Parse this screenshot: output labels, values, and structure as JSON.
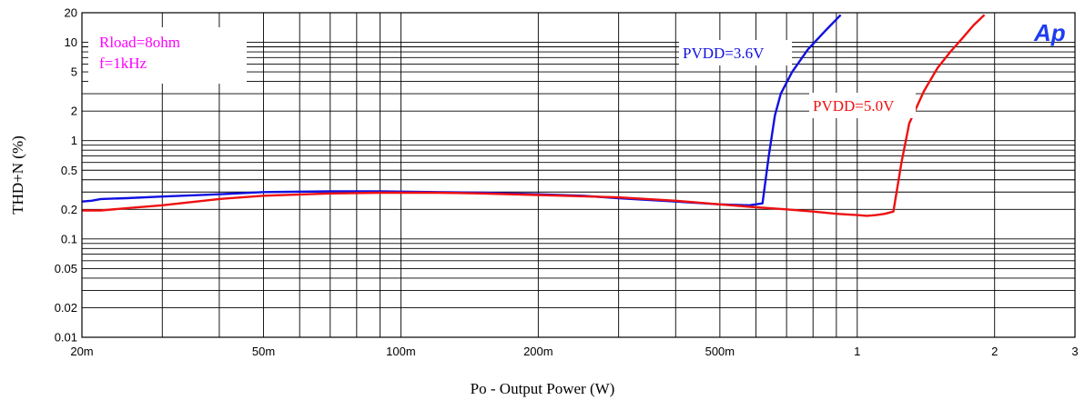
{
  "chart_data": {
    "type": "line",
    "title": "",
    "xlabel": "Po - Output Power (W)",
    "ylabel": "THD+N (%)",
    "x_scale": "log",
    "y_scale": "log",
    "xlim": [
      0.02,
      3
    ],
    "ylim": [
      0.01,
      20
    ],
    "grid": true,
    "x_ticks": [
      {
        "v": 0.02,
        "label": "20m"
      },
      {
        "v": 0.05,
        "label": "50m"
      },
      {
        "v": 0.1,
        "label": "100m"
      },
      {
        "v": 0.2,
        "label": "200m"
      },
      {
        "v": 0.5,
        "label": "500m"
      },
      {
        "v": 1,
        "label": "1"
      },
      {
        "v": 2,
        "label": "2"
      },
      {
        "v": 3,
        "label": "3"
      }
    ],
    "y_ticks": [
      {
        "v": 0.01,
        "label": "0.01"
      },
      {
        "v": 0.02,
        "label": "0.02"
      },
      {
        "v": 0.05,
        "label": "0.05"
      },
      {
        "v": 0.1,
        "label": "0.1"
      },
      {
        "v": 0.2,
        "label": "0.2"
      },
      {
        "v": 0.5,
        "label": "0.5"
      },
      {
        "v": 1,
        "label": "1"
      },
      {
        "v": 2,
        "label": "2"
      },
      {
        "v": 5,
        "label": "5"
      },
      {
        "v": 10,
        "label": "10"
      },
      {
        "v": 20,
        "label": "20"
      }
    ],
    "series": [
      {
        "name": "PVDD=3.6V",
        "color": "#1010e0",
        "x": [
          0.02,
          0.021,
          0.022,
          0.025,
          0.03,
          0.04,
          0.05,
          0.07,
          0.09,
          0.12,
          0.15,
          0.2,
          0.25,
          0.3,
          0.4,
          0.5,
          0.58,
          0.62,
          0.64,
          0.66,
          0.68,
          0.72,
          0.78,
          0.85,
          0.92
        ],
        "y": [
          0.24,
          0.245,
          0.255,
          0.26,
          0.27,
          0.285,
          0.3,
          0.305,
          0.305,
          0.3,
          0.295,
          0.285,
          0.275,
          0.26,
          0.24,
          0.225,
          0.22,
          0.23,
          0.7,
          1.8,
          3.0,
          5.0,
          8.5,
          13.0,
          19.0
        ]
      },
      {
        "name": "PVDD=5.0V",
        "color": "#ee1010",
        "x": [
          0.02,
          0.022,
          0.025,
          0.03,
          0.04,
          0.05,
          0.07,
          0.09,
          0.12,
          0.15,
          0.2,
          0.3,
          0.4,
          0.5,
          0.6,
          0.7,
          0.8,
          0.9,
          1.0,
          1.05,
          1.1,
          1.15,
          1.2,
          1.25,
          1.3,
          1.4,
          1.5,
          1.6,
          1.7,
          1.8,
          1.9
        ],
        "y": [
          0.195,
          0.195,
          0.205,
          0.22,
          0.255,
          0.275,
          0.29,
          0.295,
          0.295,
          0.29,
          0.28,
          0.265,
          0.245,
          0.225,
          0.21,
          0.2,
          0.19,
          0.18,
          0.175,
          0.172,
          0.175,
          0.18,
          0.19,
          0.6,
          1.5,
          3.2,
          5.5,
          8.0,
          11.0,
          15.0,
          19.0
        ]
      }
    ],
    "annotations": [
      {
        "text": "Rload=8ohm",
        "color": "#ff00ff"
      },
      {
        "text": "f=1kHz",
        "color": "#ff00ff"
      },
      {
        "text": "PVDD=3.6V",
        "color": "#1010e0"
      },
      {
        "text": "PVDD=5.0V",
        "color": "#ee1010"
      }
    ],
    "logo": {
      "text": "Ap",
      "color": "#1e3cf0"
    }
  }
}
